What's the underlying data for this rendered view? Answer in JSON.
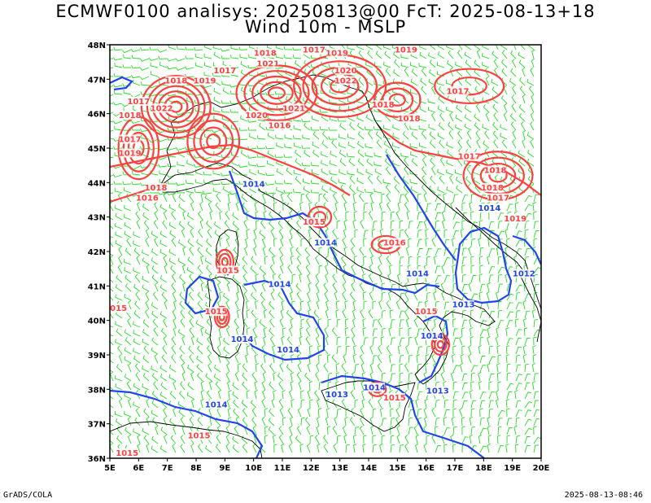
{
  "title_line1": "ECMWF0100 analisys: 20250813@00 FcT: 2025-08-13+18",
  "title_line2": "Wind 10m - MSLP",
  "footer_left": "GrADS/COLA",
  "footer_right": "2025-08-13-08:46",
  "map": {
    "lon_range": [
      5,
      20
    ],
    "lat_range": [
      36,
      48
    ],
    "x_ticks": [
      "5E",
      "6E",
      "7E",
      "8E",
      "9E",
      "10E",
      "11E",
      "12E",
      "13E",
      "14E",
      "15E",
      "16E",
      "17E",
      "18E",
      "19E",
      "20E"
    ],
    "y_ticks": [
      "48N",
      "47N",
      "46N",
      "45N",
      "44N",
      "43N",
      "42N",
      "41N",
      "40N",
      "39N",
      "38N",
      "37N",
      "36N"
    ],
    "colors": {
      "wind": "#22dd22",
      "high_isobar": "#ff4040",
      "low_isobar": "#2244ee",
      "coast": "#000000"
    }
  },
  "isobar_labels": [
    {
      "text": "1018",
      "lon": 10.4,
      "lat": 47.7,
      "color": "red"
    },
    {
      "text": "1017",
      "lon": 12.1,
      "lat": 47.8,
      "color": "red"
    },
    {
      "text": "1019",
      "lon": 12.9,
      "lat": 47.7,
      "color": "red"
    },
    {
      "text": "1019",
      "lon": 15.3,
      "lat": 47.8,
      "color": "red"
    },
    {
      "text": "1017",
      "lon": 9.0,
      "lat": 47.2,
      "color": "red"
    },
    {
      "text": "1021",
      "lon": 10.5,
      "lat": 47.4,
      "color": "red"
    },
    {
      "text": "1018",
      "lon": 7.3,
      "lat": 46.9,
      "color": "red"
    },
    {
      "text": "1019",
      "lon": 8.3,
      "lat": 46.9,
      "color": "red"
    },
    {
      "text": "1020",
      "lon": 13.2,
      "lat": 47.2,
      "color": "red"
    },
    {
      "text": "1022",
      "lon": 13.2,
      "lat": 46.9,
      "color": "red"
    },
    {
      "text": "1017",
      "lon": 6.0,
      "lat": 46.3,
      "color": "red"
    },
    {
      "text": "1022",
      "lon": 6.8,
      "lat": 46.1,
      "color": "red"
    },
    {
      "text": "1021",
      "lon": 11.4,
      "lat": 46.1,
      "color": "red"
    },
    {
      "text": "1020",
      "lon": 10.1,
      "lat": 45.9,
      "color": "red"
    },
    {
      "text": "1018",
      "lon": 14.5,
      "lat": 46.2,
      "color": "red"
    },
    {
      "text": "1018",
      "lon": 5.7,
      "lat": 45.9,
      "color": "red"
    },
    {
      "text": "1018",
      "lon": 15.4,
      "lat": 45.8,
      "color": "red"
    },
    {
      "text": "1016",
      "lon": 10.9,
      "lat": 45.6,
      "color": "red"
    },
    {
      "text": "1017",
      "lon": 17.1,
      "lat": 46.6,
      "color": "red"
    },
    {
      "text": "1017",
      "lon": 5.7,
      "lat": 45.2,
      "color": "red"
    },
    {
      "text": "1019",
      "lon": 5.7,
      "lat": 44.8,
      "color": "red"
    },
    {
      "text": "1017",
      "lon": 17.5,
      "lat": 44.7,
      "color": "red"
    },
    {
      "text": "1018",
      "lon": 18.4,
      "lat": 44.3,
      "color": "red"
    },
    {
      "text": "1018",
      "lon": 6.6,
      "lat": 43.8,
      "color": "red"
    },
    {
      "text": "1016",
      "lon": 6.3,
      "lat": 43.5,
      "color": "red"
    },
    {
      "text": "1018",
      "lon": 18.3,
      "lat": 43.8,
      "color": "red"
    },
    {
      "text": "1017",
      "lon": 18.5,
      "lat": 43.5,
      "color": "red"
    },
    {
      "text": "1019",
      "lon": 19.1,
      "lat": 42.9,
      "color": "red"
    },
    {
      "text": "1015",
      "lon": 12.1,
      "lat": 42.8,
      "color": "red"
    },
    {
      "text": "1016",
      "lon": 14.9,
      "lat": 42.2,
      "color": "red"
    },
    {
      "text": "1015",
      "lon": 9.1,
      "lat": 41.4,
      "color": "red"
    },
    {
      "text": "1015",
      "lon": 8.7,
      "lat": 40.2,
      "color": "red"
    },
    {
      "text": "1015",
      "lon": 16.0,
      "lat": 40.2,
      "color": "red"
    },
    {
      "text": "015",
      "lon": 5.3,
      "lat": 40.3,
      "color": "red"
    },
    {
      "text": "1015",
      "lon": 14.9,
      "lat": 37.7,
      "color": "red"
    },
    {
      "text": "1015",
      "lon": 8.1,
      "lat": 36.6,
      "color": "red"
    },
    {
      "text": "1015",
      "lon": 5.6,
      "lat": 36.1,
      "color": "red"
    },
    {
      "text": "1014",
      "lon": 10.0,
      "lat": 43.9,
      "color": "blue"
    },
    {
      "text": "1014",
      "lon": 18.2,
      "lat": 43.2,
      "color": "blue"
    },
    {
      "text": "1014",
      "lon": 12.5,
      "lat": 42.2,
      "color": "blue"
    },
    {
      "text": "1014",
      "lon": 15.7,
      "lat": 41.3,
      "color": "blue"
    },
    {
      "text": "1012",
      "lon": 19.4,
      "lat": 41.3,
      "color": "blue"
    },
    {
      "text": "1014",
      "lon": 10.9,
      "lat": 41.0,
      "color": "blue"
    },
    {
      "text": "1013",
      "lon": 17.3,
      "lat": 40.4,
      "color": "blue"
    },
    {
      "text": "1014",
      "lon": 9.6,
      "lat": 39.4,
      "color": "blue"
    },
    {
      "text": "1014",
      "lon": 11.2,
      "lat": 39.1,
      "color": "blue"
    },
    {
      "text": "1014",
      "lon": 16.2,
      "lat": 39.5,
      "color": "blue"
    },
    {
      "text": "1014",
      "lon": 14.2,
      "lat": 38.0,
      "color": "blue"
    },
    {
      "text": "1013",
      "lon": 16.4,
      "lat": 37.9,
      "color": "blue"
    },
    {
      "text": "1013",
      "lon": 12.9,
      "lat": 37.8,
      "color": "blue"
    },
    {
      "text": "1014",
      "lon": 8.7,
      "lat": 37.5,
      "color": "blue"
    }
  ]
}
